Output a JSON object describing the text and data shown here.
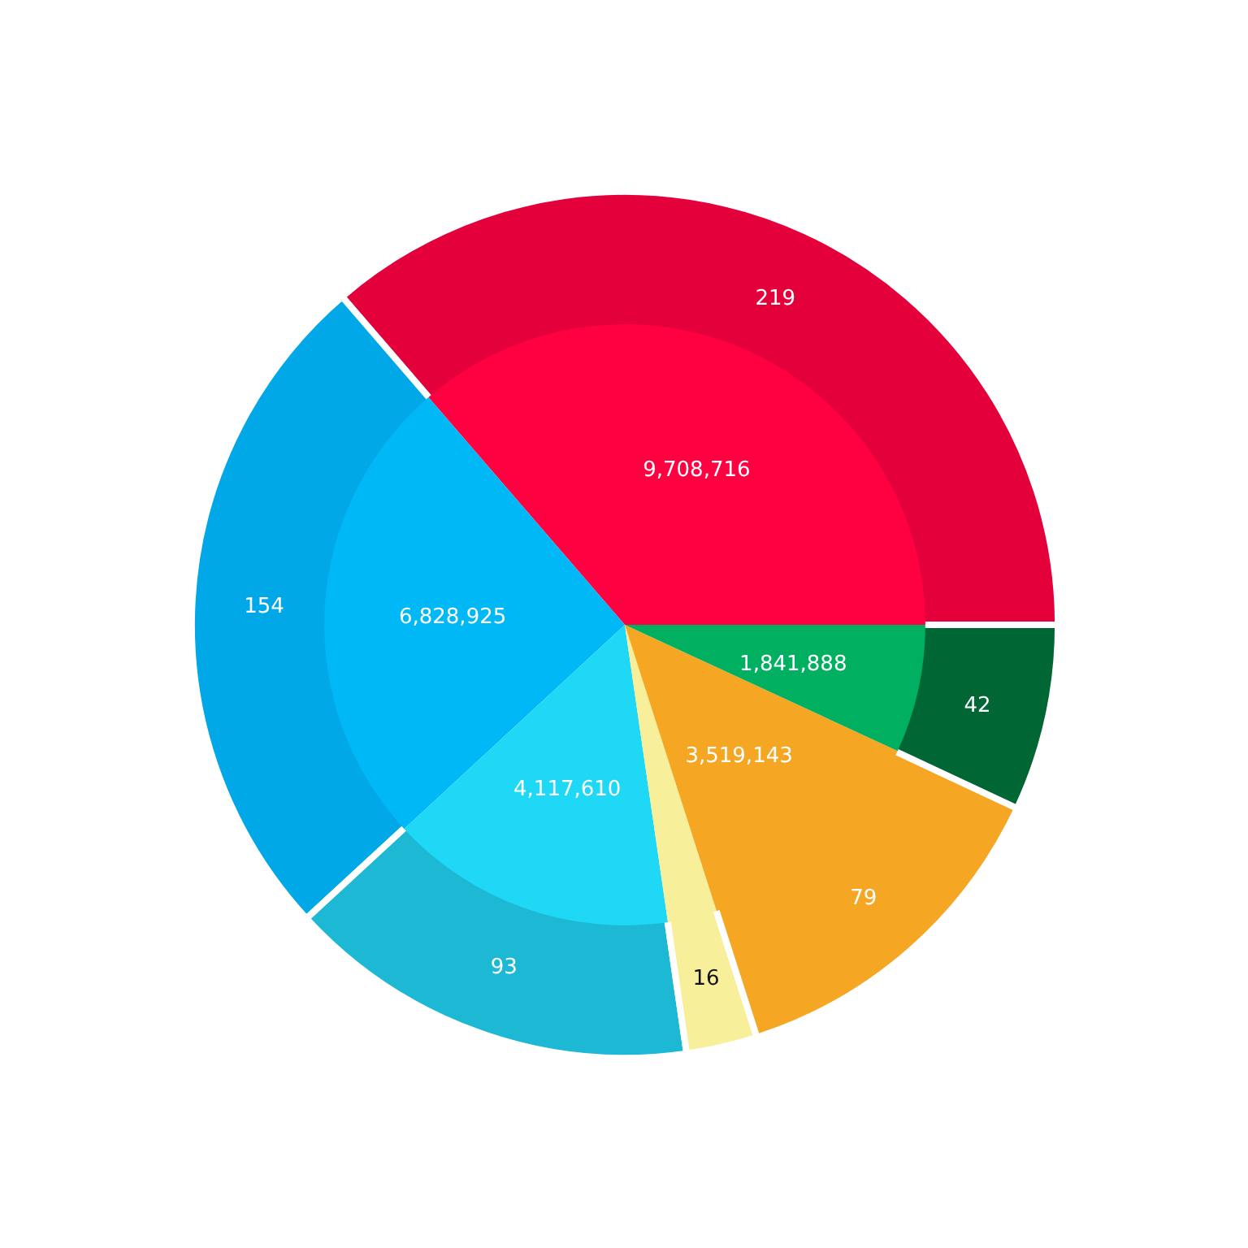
{
  "chart_data": {
    "type": "donut",
    "categories": [
      null,
      null,
      null,
      null,
      null,
      null
    ],
    "series": [
      {
        "type": "donut",
        "values": [
          219,
          154,
          93,
          16,
          79,
          42
        ],
        "colors": [
          "#e4003a",
          "#00a8e8",
          "#1cb8d4",
          "#f8ef9a",
          "#f5a623",
          "#006633"
        ],
        "value_labels": [
          "219",
          "154",
          "93",
          "16",
          "79",
          "42"
        ]
      },
      {
        "type": "pie",
        "values": [
          9708716,
          6828925,
          4117610,
          708000,
          3519143,
          1841888
        ],
        "colors": [
          "#ff0040",
          "#00b8f5",
          "#1fd8f5",
          "#f8ef9a",
          "#f5a623",
          "#00b060"
        ],
        "value_labels": [
          "9,708,716",
          "6,828,925",
          "4,117,610",
          null,
          "3,519,143",
          "1,841,888"
        ]
      }
    ]
  }
}
